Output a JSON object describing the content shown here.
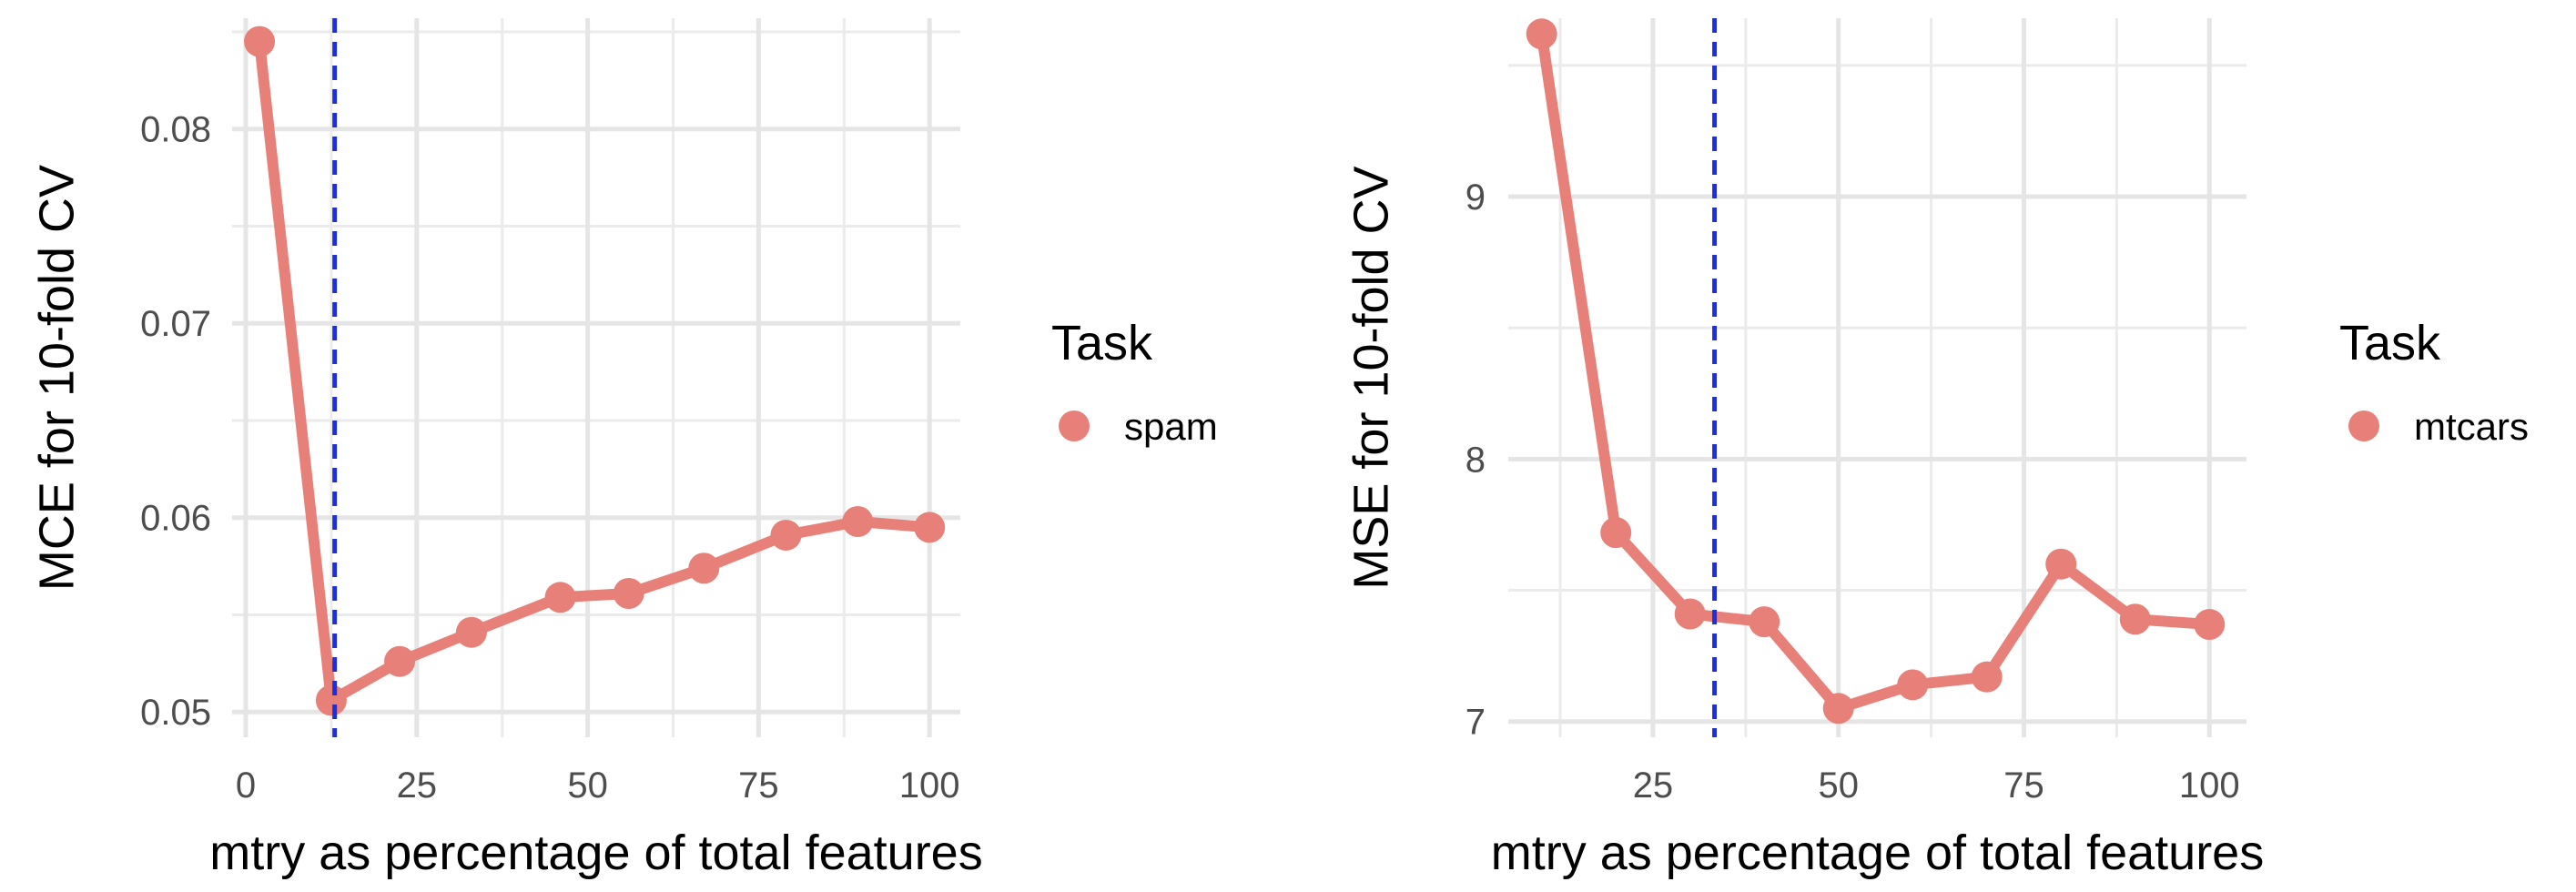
{
  "chart_data": [
    {
      "type": "line",
      "title": "",
      "xlabel": "mtry as percentage of total features",
      "ylabel": "MCE for 10-fold CV",
      "xlim": [
        -2,
        104.5
      ],
      "ylim": [
        0.0487,
        0.0857
      ],
      "x_ticks": [
        0,
        25,
        50,
        75,
        100
      ],
      "y_ticks": [
        0.05,
        0.06,
        0.07,
        0.08
      ],
      "x_tick_labels": [
        "0",
        "25",
        "50",
        "75",
        "100"
      ],
      "y_tick_labels": [
        "0.05",
        "0.06",
        "0.07",
        "0.08"
      ],
      "grid": true,
      "vline": 13,
      "vline_color": "#1a2fe0",
      "legend": {
        "title": "Task",
        "position": "right",
        "entries": [
          "spam"
        ]
      },
      "series": [
        {
          "name": "spam",
          "color": "#e8807a",
          "x": [
            2,
            12.5,
            22.5,
            33,
            46,
            56,
            67,
            79,
            89.5,
            100
          ],
          "y": [
            0.0845,
            0.0506,
            0.0526,
            0.0541,
            0.0559,
            0.0561,
            0.0574,
            0.0591,
            0.0598,
            0.0595
          ]
        }
      ]
    },
    {
      "type": "line",
      "title": "",
      "xlabel": "mtry as percentage of total features",
      "ylabel": "MSE for 10-fold CV",
      "xlim": [
        5.5,
        105
      ],
      "ylim": [
        6.94,
        9.68
      ],
      "x_ticks": [
        25,
        50,
        75,
        100
      ],
      "y_ticks": [
        7,
        8,
        9
      ],
      "x_tick_labels": [
        "25",
        "50",
        "75",
        "100"
      ],
      "y_tick_labels": [
        "7",
        "8",
        "9"
      ],
      "grid": true,
      "vline": 33.3,
      "vline_color": "#1a2fe0",
      "legend": {
        "title": "Task",
        "position": "right",
        "entries": [
          "mtcars"
        ]
      },
      "series": [
        {
          "name": "mtcars",
          "color": "#e8807a",
          "x": [
            10,
            20,
            30,
            40,
            50,
            60,
            70,
            80,
            90,
            100
          ],
          "y": [
            9.62,
            7.72,
            7.41,
            7.38,
            7.05,
            7.14,
            7.17,
            7.6,
            7.39,
            7.37
          ]
        }
      ]
    }
  ]
}
